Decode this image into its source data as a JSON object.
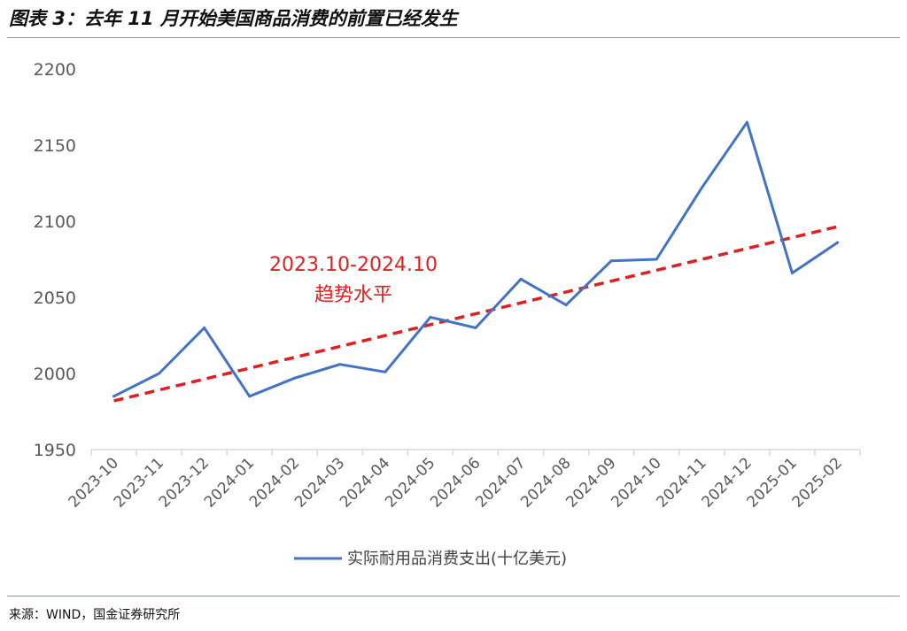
{
  "header": {
    "title": "图表 3：去年 11 月开始美国商品消费的前置已经发生"
  },
  "footer": {
    "source": "来源：WIND，国金证券研究所"
  },
  "colors": {
    "series_line": "#4472c4",
    "trend_line": "#e02020",
    "axis": "#d9d9d9",
    "tick_text": "#595959"
  },
  "chart_data": {
    "type": "line",
    "title": "",
    "xlabel": "",
    "ylabel": "",
    "categories": [
      "2023-10",
      "2023-11",
      "2023-12",
      "2024-01",
      "2024-02",
      "2024-03",
      "2024-04",
      "2024-05",
      "2024-06",
      "2024-07",
      "2024-08",
      "2024-09",
      "2024-10",
      "2024-11",
      "2024-12",
      "2025-01",
      "2025-02"
    ],
    "ylim": [
      1950,
      2200
    ],
    "yticks": [
      1950,
      2000,
      2050,
      2100,
      2150,
      2200
    ],
    "grid": false,
    "legend_position": "bottom",
    "series": [
      {
        "name": "实际耐用品消费支出(十亿美元)",
        "color": "#4472c4",
        "style": "solid",
        "values": [
          1985,
          2000,
          2030,
          1985,
          1997,
          2006,
          2001,
          2037,
          2030,
          2062,
          2045,
          2074,
          2075,
          2122,
          2165,
          2066,
          2086
        ]
      }
    ],
    "trendline": {
      "style": "dashed",
      "color": "#e02020",
      "start": 1982,
      "end": 2097,
      "label_lines": [
        "2023.10-2024.10",
        "趋势水平"
      ]
    }
  }
}
